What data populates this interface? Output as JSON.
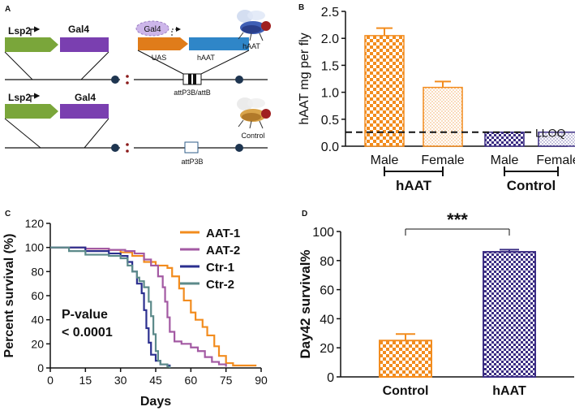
{
  "panels": {
    "A": {
      "letter": "A",
      "row1": {
        "lsp2": "Lsp2",
        "gal4": "Gal4",
        "gal4_protein": "Gal4",
        "uas": "UAS",
        "haat_gene": "hAAT",
        "site": "attP3B/attB",
        "fly_label": "hAAT"
      },
      "row2": {
        "lsp2": "Lsp2",
        "gal4": "Gal4",
        "site": "attP3B",
        "fly_label": "Control"
      }
    },
    "B": {
      "letter": "B"
    },
    "C": {
      "letter": "C"
    },
    "D": {
      "letter": "D"
    }
  },
  "colors": {
    "orange": "#f28c1e",
    "purple_bar": "#3b2d83",
    "magenta_line": "#a35aa3",
    "navy_line": "#2b2f8f",
    "teal_line": "#5c8a8a",
    "green_arrow": "#7aa63a",
    "gal4_purple": "#7a3fb0",
    "haat_blue": "#2f86c8"
  },
  "chart_data": [
    {
      "panel": "B",
      "type": "bar",
      "categories": [
        "Male",
        "Female",
        "Male",
        "Female"
      ],
      "groups": [
        {
          "label": "hAAT",
          "members": [
            0,
            1
          ]
        },
        {
          "label": "Control",
          "members": [
            2,
            3
          ]
        }
      ],
      "values": [
        2.05,
        1.09,
        0.26,
        0.26
      ],
      "errors": [
        0.14,
        0.11,
        0.0,
        0.0
      ],
      "ylabel": "hAAT  mg per fly",
      "ylim": [
        0,
        2.5
      ],
      "yticks": [
        "0.0",
        "0.5",
        "1.0",
        "1.5",
        "2.0",
        "2.5"
      ],
      "reference_line": {
        "label": "LLOQ",
        "value": 0.26
      }
    },
    {
      "panel": "C",
      "type": "line",
      "xlabel": "Days",
      "ylabel": "Percent survival (%)",
      "xlim": [
        0,
        90
      ],
      "ylim": [
        0,
        120
      ],
      "xticks": [
        "0",
        "15",
        "30",
        "45",
        "60",
        "75",
        "90"
      ],
      "yticks": [
        "0",
        "20",
        "40",
        "60",
        "80",
        "100",
        "120"
      ],
      "annotation": [
        "P-value",
        "< 0.0001"
      ],
      "series": [
        {
          "name": "AAT-1",
          "points": [
            [
              0,
              100
            ],
            [
              15,
              99
            ],
            [
              25,
              98
            ],
            [
              30,
              96
            ],
            [
              35,
              93
            ],
            [
              40,
              88
            ],
            [
              45,
              85
            ],
            [
              50,
              83
            ],
            [
              52,
              76
            ],
            [
              55,
              66
            ],
            [
              57,
              56
            ],
            [
              60,
              46
            ],
            [
              62,
              40
            ],
            [
              65,
              34
            ],
            [
              67,
              27
            ],
            [
              70,
              18
            ],
            [
              72,
              10
            ],
            [
              75,
              4
            ],
            [
              78,
              2
            ],
            [
              88,
              2
            ]
          ]
        },
        {
          "name": "AAT-2",
          "points": [
            [
              0,
              100
            ],
            [
              15,
              99
            ],
            [
              25,
              98
            ],
            [
              32,
              97
            ],
            [
              36,
              95
            ],
            [
              40,
              90
            ],
            [
              43,
              85
            ],
            [
              46,
              76
            ],
            [
              48,
              67
            ],
            [
              49,
              55
            ],
            [
              50,
              42
            ],
            [
              51,
              30
            ],
            [
              53,
              22
            ],
            [
              56,
              20
            ],
            [
              60,
              17
            ],
            [
              63,
              14
            ],
            [
              66,
              9
            ],
            [
              69,
              5
            ],
            [
              72,
              3
            ],
            [
              75,
              1
            ]
          ]
        },
        {
          "name": "Ctr-1",
          "points": [
            [
              0,
              100
            ],
            [
              15,
              97
            ],
            [
              25,
              95
            ],
            [
              30,
              93
            ],
            [
              33,
              88
            ],
            [
              35,
              80
            ],
            [
              37,
              70
            ],
            [
              39,
              62
            ],
            [
              40,
              48
            ],
            [
              41,
              33
            ],
            [
              42,
              21
            ],
            [
              43,
              11
            ],
            [
              45,
              6
            ],
            [
              47,
              3
            ],
            [
              50,
              2
            ],
            [
              51,
              0
            ]
          ]
        },
        {
          "name": "Ctr-2",
          "points": [
            [
              0,
              100
            ],
            [
              8,
              97
            ],
            [
              15,
              94
            ],
            [
              25,
              93
            ],
            [
              30,
              91
            ],
            [
              33,
              85
            ],
            [
              35,
              80
            ],
            [
              37,
              75
            ],
            [
              38,
              72
            ],
            [
              40,
              67
            ],
            [
              42,
              55
            ],
            [
              43,
              43
            ],
            [
              44,
              28
            ],
            [
              45,
              14
            ],
            [
              46,
              6
            ],
            [
              47,
              3
            ],
            [
              50,
              1
            ],
            [
              51,
              0
            ]
          ]
        }
      ]
    },
    {
      "panel": "D",
      "type": "bar",
      "categories": [
        "Control",
        "hAAT"
      ],
      "values": [
        25,
        86
      ],
      "errors": [
        4.5,
        1.5
      ],
      "ylabel": "Day42 survival%",
      "ylim": [
        0,
        100
      ],
      "yticks": [
        "0",
        "20",
        "40",
        "60",
        "80",
        "100"
      ],
      "significance": "***"
    }
  ]
}
